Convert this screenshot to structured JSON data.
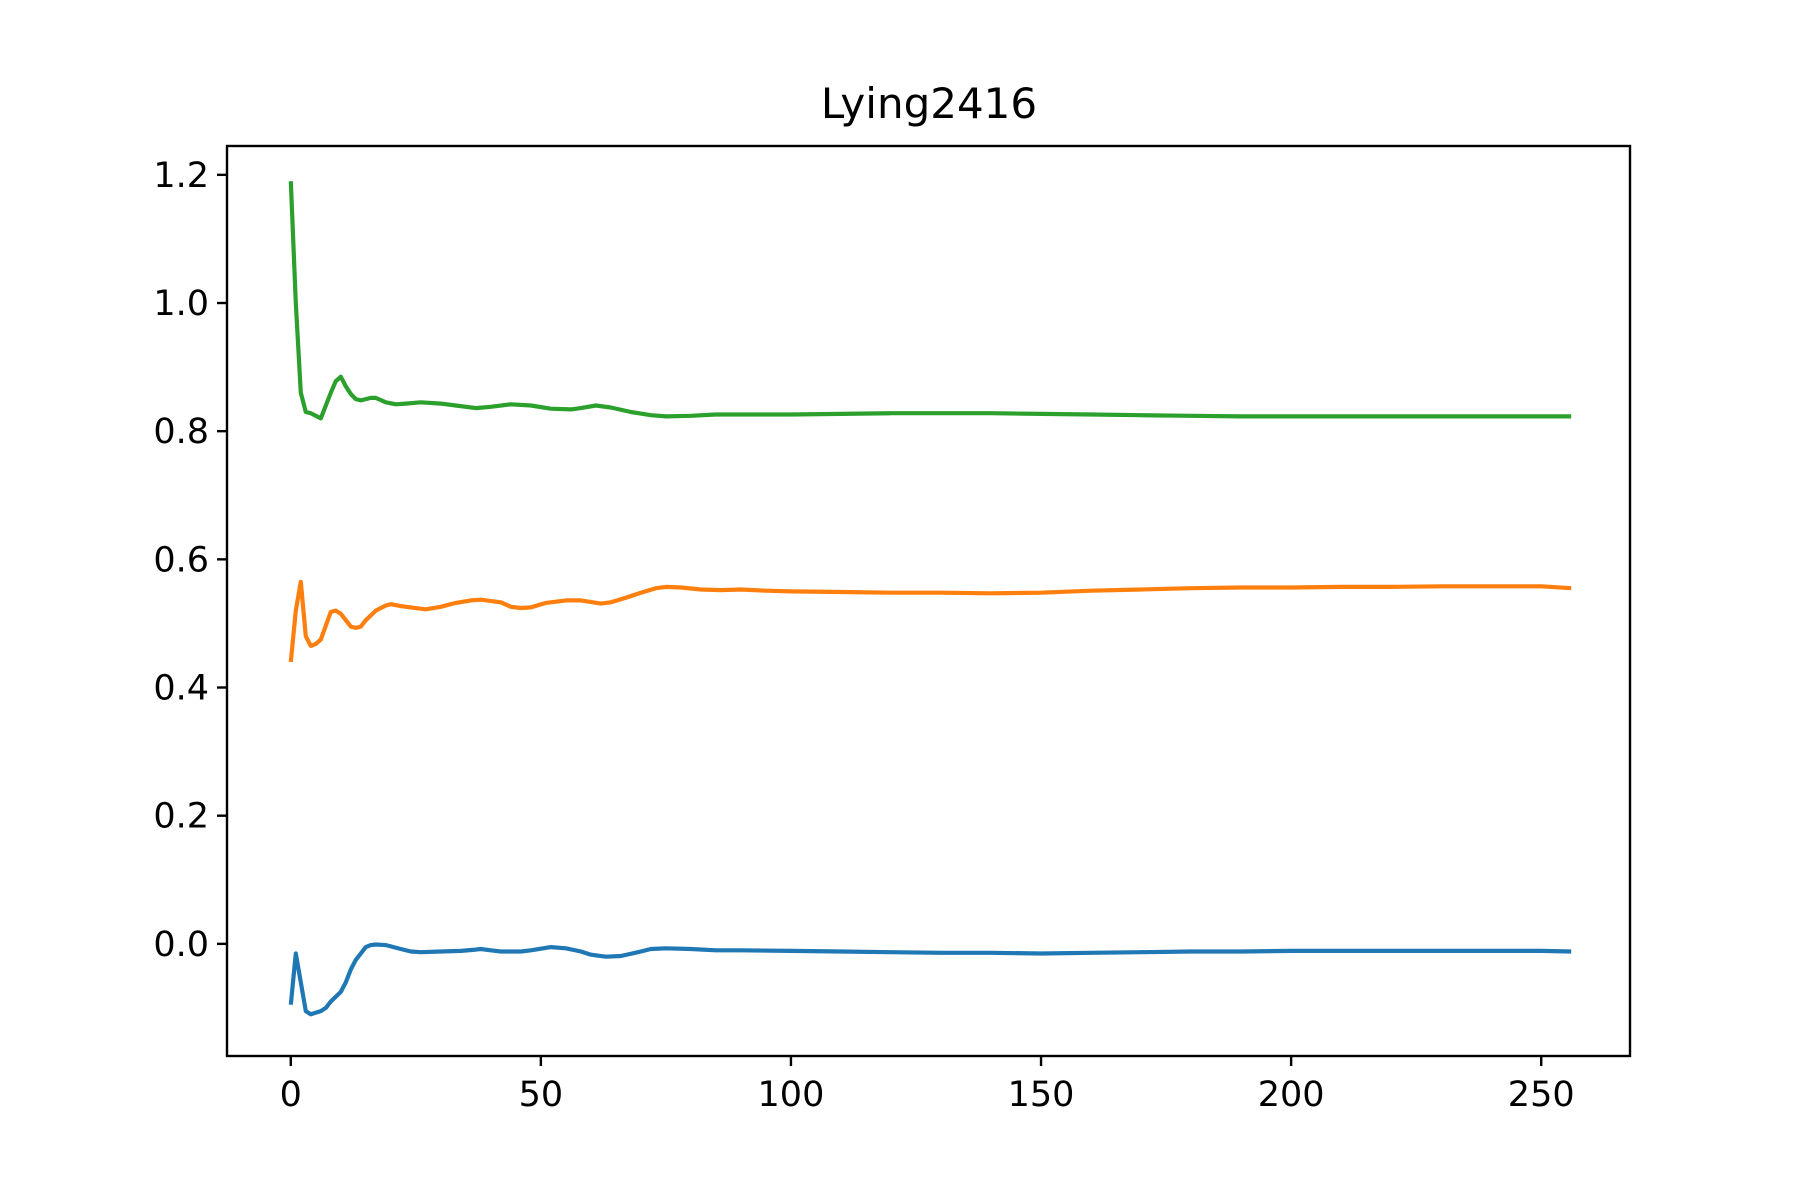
{
  "chart_data": {
    "type": "line",
    "title": "Lying2416",
    "xlabel": "",
    "ylabel": "",
    "xlim": [
      -12.75,
      267.75
    ],
    "ylim": [
      -0.175,
      1.245
    ],
    "xticks": [
      0,
      50,
      100,
      150,
      200,
      250
    ],
    "yticks": [
      0.0,
      0.2,
      0.4,
      0.6,
      0.8,
      1.0,
      1.2
    ],
    "xtick_labels": [
      "0",
      "50",
      "100",
      "150",
      "200",
      "250"
    ],
    "ytick_labels": [
      "0.0",
      "0.2",
      "0.4",
      "0.6",
      "0.8",
      "1.0",
      "1.2"
    ],
    "grid": false,
    "legend": "none",
    "series": [
      {
        "color": "#1f77b4",
        "points": [
          [
            0,
            -0.095
          ],
          [
            1,
            -0.015
          ],
          [
            2,
            -0.06
          ],
          [
            3,
            -0.105
          ],
          [
            4,
            -0.11
          ],
          [
            6,
            -0.105
          ],
          [
            7,
            -0.1
          ],
          [
            8,
            -0.09
          ],
          [
            10,
            -0.075
          ],
          [
            11,
            -0.06
          ],
          [
            12,
            -0.04
          ],
          [
            13,
            -0.025
          ],
          [
            14,
            -0.015
          ],
          [
            15,
            -0.005
          ],
          [
            16,
            -0.002
          ],
          [
            17,
            -0.001
          ],
          [
            19,
            -0.002
          ],
          [
            20,
            -0.004
          ],
          [
            22,
            -0.008
          ],
          [
            24,
            -0.012
          ],
          [
            26,
            -0.013
          ],
          [
            30,
            -0.012
          ],
          [
            34,
            -0.011
          ],
          [
            37,
            -0.009
          ],
          [
            38,
            -0.008
          ],
          [
            40,
            -0.01
          ],
          [
            42,
            -0.012
          ],
          [
            46,
            -0.012
          ],
          [
            48,
            -0.01
          ],
          [
            52,
            -0.005
          ],
          [
            55,
            -0.007
          ],
          [
            58,
            -0.012
          ],
          [
            60,
            -0.017
          ],
          [
            63,
            -0.02
          ],
          [
            66,
            -0.019
          ],
          [
            70,
            -0.012
          ],
          [
            72,
            -0.008
          ],
          [
            75,
            -0.007
          ],
          [
            80,
            -0.008
          ],
          [
            85,
            -0.01
          ],
          [
            90,
            -0.01
          ],
          [
            100,
            -0.011
          ],
          [
            110,
            -0.012
          ],
          [
            120,
            -0.013
          ],
          [
            130,
            -0.014
          ],
          [
            140,
            -0.014
          ],
          [
            150,
            -0.015
          ],
          [
            160,
            -0.014
          ],
          [
            170,
            -0.013
          ],
          [
            180,
            -0.012
          ],
          [
            190,
            -0.012
          ],
          [
            200,
            -0.011
          ],
          [
            210,
            -0.011
          ],
          [
            220,
            -0.011
          ],
          [
            230,
            -0.011
          ],
          [
            240,
            -0.011
          ],
          [
            250,
            -0.011
          ],
          [
            256,
            -0.012
          ]
        ]
      },
      {
        "color": "#ff7f0e",
        "points": [
          [
            0,
            0.44
          ],
          [
            1,
            0.52
          ],
          [
            2,
            0.565
          ],
          [
            3,
            0.48
          ],
          [
            4,
            0.465
          ],
          [
            5,
            0.468
          ],
          [
            6,
            0.475
          ],
          [
            8,
            0.518
          ],
          [
            9,
            0.52
          ],
          [
            10,
            0.515
          ],
          [
            11,
            0.505
          ],
          [
            12,
            0.495
          ],
          [
            13,
            0.493
          ],
          [
            14,
            0.495
          ],
          [
            15,
            0.505
          ],
          [
            17,
            0.52
          ],
          [
            19,
            0.528
          ],
          [
            20,
            0.53
          ],
          [
            22,
            0.527
          ],
          [
            24,
            0.525
          ],
          [
            27,
            0.522
          ],
          [
            30,
            0.526
          ],
          [
            33,
            0.532
          ],
          [
            36,
            0.536
          ],
          [
            38,
            0.537
          ],
          [
            42,
            0.533
          ],
          [
            44,
            0.526
          ],
          [
            46,
            0.524
          ],
          [
            48,
            0.525
          ],
          [
            51,
            0.532
          ],
          [
            55,
            0.536
          ],
          [
            58,
            0.536
          ],
          [
            62,
            0.531
          ],
          [
            64,
            0.533
          ],
          [
            67,
            0.54
          ],
          [
            70,
            0.548
          ],
          [
            73,
            0.555
          ],
          [
            75,
            0.557
          ],
          [
            78,
            0.556
          ],
          [
            82,
            0.553
          ],
          [
            86,
            0.552
          ],
          [
            90,
            0.553
          ],
          [
            95,
            0.551
          ],
          [
            100,
            0.55
          ],
          [
            110,
            0.549
          ],
          [
            120,
            0.548
          ],
          [
            130,
            0.548
          ],
          [
            140,
            0.547
          ],
          [
            150,
            0.548
          ],
          [
            160,
            0.551
          ],
          [
            170,
            0.553
          ],
          [
            180,
            0.555
          ],
          [
            190,
            0.556
          ],
          [
            200,
            0.556
          ],
          [
            210,
            0.557
          ],
          [
            220,
            0.557
          ],
          [
            230,
            0.558
          ],
          [
            240,
            0.558
          ],
          [
            250,
            0.558
          ],
          [
            256,
            0.555
          ]
        ]
      },
      {
        "color": "#2ca02c",
        "points": [
          [
            0,
            1.19
          ],
          [
            1,
            1.0
          ],
          [
            2,
            0.86
          ],
          [
            3,
            0.83
          ],
          [
            4,
            0.828
          ],
          [
            6,
            0.82
          ],
          [
            8,
            0.86
          ],
          [
            9,
            0.878
          ],
          [
            10,
            0.885
          ],
          [
            11,
            0.87
          ],
          [
            12,
            0.858
          ],
          [
            13,
            0.85
          ],
          [
            14,
            0.848
          ],
          [
            16,
            0.852
          ],
          [
            17,
            0.852
          ],
          [
            19,
            0.845
          ],
          [
            21,
            0.842
          ],
          [
            23,
            0.843
          ],
          [
            26,
            0.845
          ],
          [
            30,
            0.843
          ],
          [
            33,
            0.84
          ],
          [
            37,
            0.836
          ],
          [
            40,
            0.838
          ],
          [
            44,
            0.842
          ],
          [
            48,
            0.84
          ],
          [
            52,
            0.835
          ],
          [
            56,
            0.834
          ],
          [
            58,
            0.836
          ],
          [
            61,
            0.84
          ],
          [
            64,
            0.837
          ],
          [
            68,
            0.83
          ],
          [
            72,
            0.825
          ],
          [
            75,
            0.823
          ],
          [
            80,
            0.824
          ],
          [
            85,
            0.826
          ],
          [
            90,
            0.826
          ],
          [
            100,
            0.826
          ],
          [
            110,
            0.827
          ],
          [
            120,
            0.828
          ],
          [
            130,
            0.828
          ],
          [
            140,
            0.828
          ],
          [
            150,
            0.827
          ],
          [
            160,
            0.826
          ],
          [
            170,
            0.825
          ],
          [
            180,
            0.824
          ],
          [
            190,
            0.823
          ],
          [
            200,
            0.823
          ],
          [
            210,
            0.823
          ],
          [
            220,
            0.823
          ],
          [
            230,
            0.823
          ],
          [
            240,
            0.823
          ],
          [
            250,
            0.823
          ],
          [
            256,
            0.823
          ]
        ]
      }
    ]
  }
}
